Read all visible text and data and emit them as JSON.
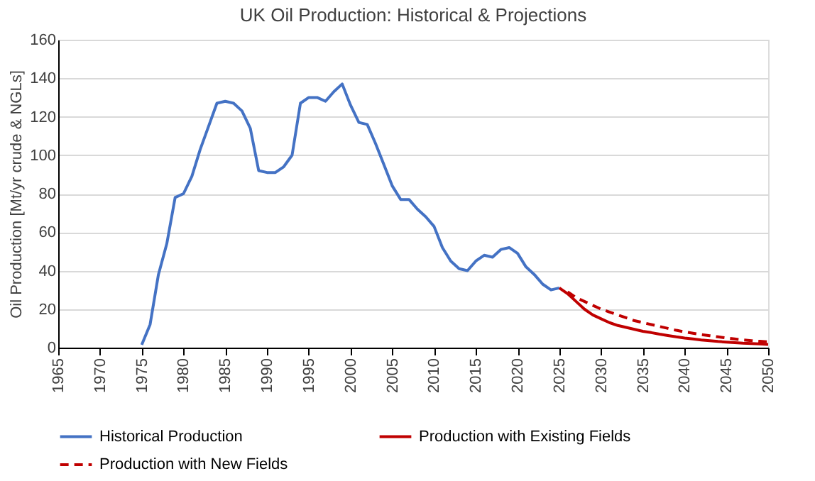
{
  "chart_data": {
    "type": "line",
    "title": "UK Oil Production: Historical & Projections",
    "ylabel": "Oil Production [Mt/yr crude & NGLs]",
    "xlim": [
      1965,
      2050
    ],
    "xticks": [
      1965,
      1970,
      1975,
      1980,
      1985,
      1990,
      1995,
      2000,
      2005,
      2010,
      2015,
      2020,
      2025,
      2030,
      2035,
      2040,
      2045,
      2050
    ],
    "ylim": [
      0,
      160
    ],
    "yticks": [
      0,
      20,
      40,
      60,
      80,
      100,
      120,
      140,
      160
    ],
    "grid": "y",
    "legend": "bottom",
    "marker": "none",
    "series": [
      {
        "name": "Historical Production",
        "color": "#4472c4",
        "line_style": "solid",
        "x": [
          1975,
          1976,
          1977,
          1978,
          1979,
          1980,
          1981,
          1982,
          1983,
          1984,
          1985,
          1986,
          1987,
          1988,
          1989,
          1990,
          1991,
          1992,
          1993,
          1994,
          1995,
          1996,
          1997,
          1998,
          1999,
          2000,
          2001,
          2002,
          2003,
          2004,
          2005,
          2006,
          2007,
          2008,
          2009,
          2010,
          2011,
          2012,
          2013,
          2014,
          2015,
          2016,
          2017,
          2018,
          2019,
          2020,
          2021,
          2022,
          2023,
          2024,
          2025
        ],
        "values": [
          1.5,
          12,
          38,
          54,
          78,
          80,
          89,
          103,
          115,
          127,
          128,
          127,
          123,
          114,
          92,
          91,
          91,
          94,
          100,
          127,
          130,
          130,
          128,
          133,
          137,
          126,
          117,
          116,
          106,
          95,
          84,
          77,
          77,
          72,
          68,
          63,
          52,
          45,
          41,
          40,
          45,
          48,
          47,
          51,
          52,
          49,
          42,
          38,
          33,
          30,
          31
        ]
      },
      {
        "name": "Production with Existing Fields",
        "color": "#c00000",
        "line_style": "solid",
        "x": [
          2025,
          2026,
          2027,
          2028,
          2029,
          2030,
          2031,
          2032,
          2033,
          2034,
          2035,
          2036,
          2037,
          2038,
          2039,
          2040,
          2041,
          2042,
          2043,
          2044,
          2045,
          2046,
          2047,
          2048,
          2049,
          2050
        ],
        "values": [
          31,
          28,
          24,
          20,
          17,
          15,
          13,
          11.5,
          10.5,
          9.5,
          8.5,
          7.8,
          7,
          6.3,
          5.6,
          5,
          4.5,
          4,
          3.6,
          3.2,
          2.9,
          2.6,
          2.3,
          2.1,
          1.9,
          1.7
        ]
      },
      {
        "name": "Production with New Fields",
        "color": "#c00000",
        "line_style": "dashed",
        "x": [
          2026,
          2027,
          2028,
          2029,
          2030,
          2031,
          2032,
          2033,
          2034,
          2035,
          2036,
          2037,
          2038,
          2039,
          2040,
          2041,
          2042,
          2043,
          2044,
          2045,
          2046,
          2047,
          2048,
          2049,
          2050
        ],
        "values": [
          29,
          26,
          24,
          22,
          20,
          18.5,
          17,
          15.5,
          14,
          13,
          12,
          11,
          10,
          9,
          8.2,
          7.5,
          6.8,
          6.2,
          5.6,
          5,
          4.5,
          4,
          3.6,
          3.3,
          3
        ]
      }
    ]
  }
}
